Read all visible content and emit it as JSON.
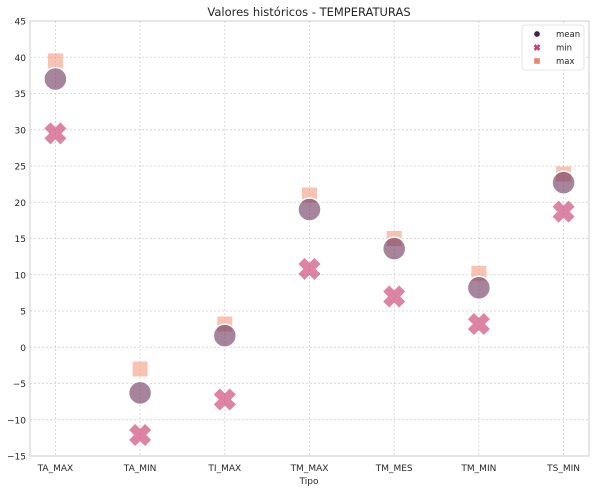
{
  "chart_data": {
    "type": "scatter",
    "title": "Valores históricos - TEMPERATURAS",
    "xlabel": "Tipo",
    "ylabel": "",
    "categories": [
      "TA_MAX",
      "TA_MIN",
      "TI_MAX",
      "TM_MAX",
      "TM_MES",
      "TM_MIN",
      "TS_MIN"
    ],
    "ylim": [
      -15,
      45
    ],
    "yticks": [
      -15,
      -10,
      -5,
      0,
      5,
      10,
      15,
      20,
      25,
      30,
      35,
      40,
      45
    ],
    "grid": true,
    "legend_position": "top-right",
    "series": [
      {
        "name": "mean",
        "marker": "circle",
        "color": "#4a1f49",
        "values": [
          37.0,
          -6.3,
          1.6,
          19.0,
          13.6,
          8.2,
          22.7
        ]
      },
      {
        "name": "min",
        "marker": "x",
        "color": "#c8436f",
        "values": [
          29.5,
          -12.1,
          -7.2,
          10.8,
          7.0,
          3.2,
          18.7
        ]
      },
      {
        "name": "max",
        "marker": "square",
        "color": "#f0836a",
        "values": [
          39.5,
          -3.0,
          3.2,
          21.0,
          15.0,
          10.2,
          23.9
        ]
      }
    ]
  }
}
